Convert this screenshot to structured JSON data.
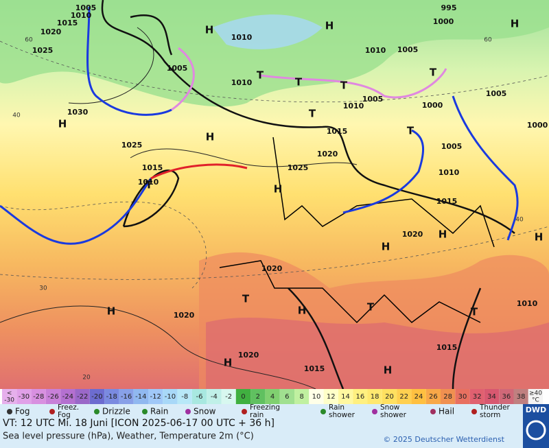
{
  "map": {
    "labels": [
      "1005",
      "1010",
      "1015",
      "1020",
      "1025",
      "1030",
      "H",
      "1025",
      "H",
      "H",
      "1005",
      "1010",
      "1010",
      "T",
      "T",
      "T",
      "T",
      "1015",
      "1020",
      "1025",
      "H",
      "1015",
      "1010",
      "T",
      "1010",
      "1005",
      "995",
      "1000",
      "H",
      "1005",
      "1000",
      "1005",
      "1010",
      "1015",
      "1020",
      "H",
      "H",
      "1020",
      "T",
      "H",
      "T",
      "T",
      "H",
      "1020",
      "1010",
      "1015",
      "1015",
      "1020",
      "H",
      "H",
      "H",
      "1010",
      "1005",
      "H",
      "T",
      "1000",
      "T"
    ],
    "grid_labels": [
      "60",
      "40",
      "30",
      "20",
      "40",
      "60"
    ]
  },
  "legend": {
    "scale_first": [
      "<",
      "-30"
    ],
    "scale": [
      -30,
      -28,
      -26,
      -24,
      -22,
      -20,
      -18,
      -16,
      -14,
      -12,
      -10,
      -8,
      -6,
      -4,
      -2,
      0,
      2,
      4,
      6,
      8,
      10,
      12,
      14,
      16,
      18,
      20,
      22,
      24,
      26,
      28,
      30,
      32,
      34,
      36,
      38
    ],
    "scale_last": [
      "≥40",
      "°C"
    ],
    "symbols": [
      "Fog",
      "Freez. Fog",
      "Drizzle",
      "Rain",
      "Snow",
      "Freezing rain",
      "Rain shower",
      "Snow shower",
      "Hail",
      "Thunder storm"
    ]
  },
  "footer": {
    "line1": "VT: 12 UTC Mi.   18 Juni [ICON 2025-06-17  00 UTC + 36 h]",
    "line2": "Sea level pressure (hPa), Weather, Temperature 2m (°C)",
    "copyright": "© 2025 Deutscher Wetterdienst",
    "logo": "DWD"
  }
}
